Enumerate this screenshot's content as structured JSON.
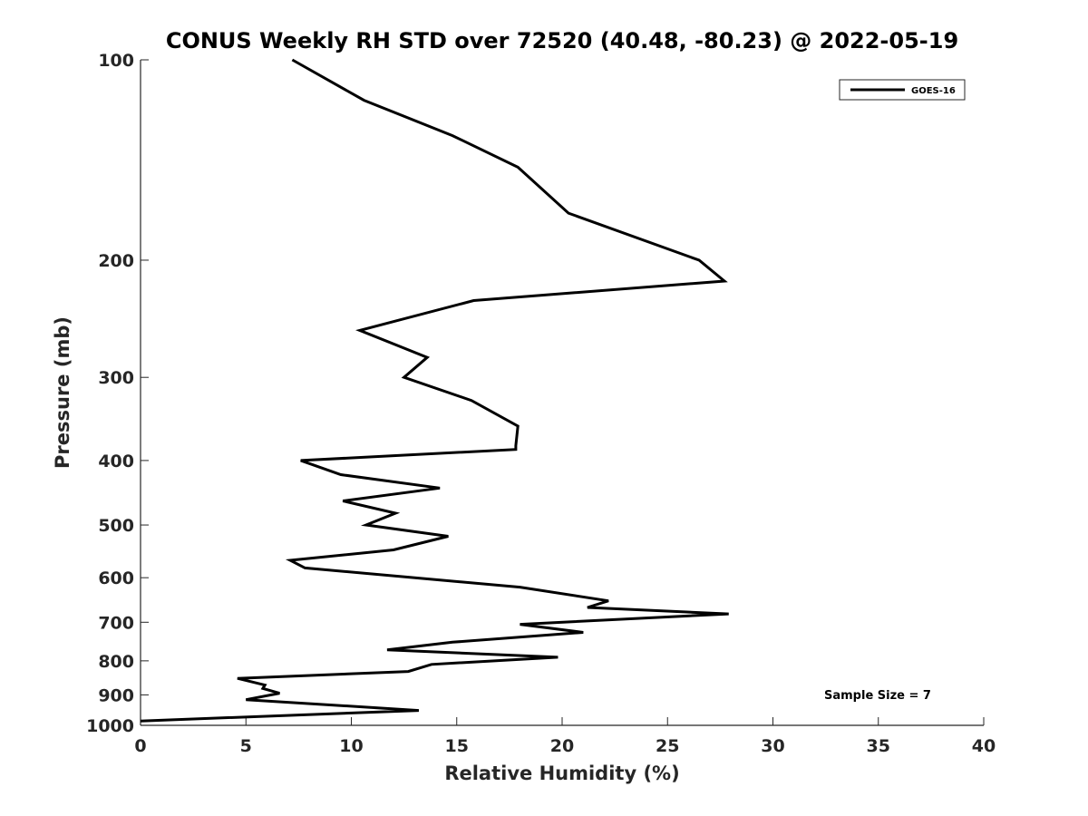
{
  "chart_data": {
    "type": "line",
    "title": "CONUS Weekly RH STD over 72520 (40.48, -80.23) @ 2022-05-19",
    "xlabel": "Relative Humidity (%)",
    "ylabel": "Pressure (mb)",
    "xlim": [
      0,
      40
    ],
    "ylim": [
      1000,
      100
    ],
    "y_scale": "log",
    "x_ticks": [
      0,
      5,
      10,
      15,
      20,
      25,
      30,
      35,
      40
    ],
    "x_tick_labels": [
      "0",
      "5",
      "10",
      "15",
      "20",
      "25",
      "30",
      "35",
      "40"
    ],
    "y_ticks": [
      100,
      200,
      300,
      400,
      500,
      600,
      700,
      800,
      900,
      1000
    ],
    "y_tick_labels": [
      "100",
      "200",
      "300",
      "400",
      "500",
      "600",
      "700",
      "800",
      "900",
      "1000"
    ],
    "grid": false,
    "legend_position": "top-right",
    "series": [
      {
        "name": "GOES-16",
        "color": "#000000",
        "x": [
          7.2,
          10.6,
          14.8,
          17.9,
          20.3,
          26.5,
          27.7,
          15.8,
          10.4,
          13.6,
          12.5,
          15.7,
          17.9,
          17.8,
          17.8,
          7.6,
          9.5,
          14.2,
          9.6,
          12.1,
          10.7,
          14.6,
          12.0,
          7.1,
          7.8,
          18.0,
          22.2,
          21.2,
          27.9,
          18.0,
          21.0,
          14.8,
          11.7,
          19.8,
          13.8,
          12.7,
          4.6,
          5.9,
          5.8,
          6.6,
          5.0,
          13.2,
          0.0
        ],
        "y": [
          100,
          115,
          130,
          145,
          170,
          200,
          215,
          230,
          255,
          280,
          300,
          325,
          355,
          380,
          385,
          400,
          420,
          440,
          460,
          480,
          500,
          520,
          545,
          565,
          580,
          620,
          650,
          665,
          680,
          705,
          725,
          750,
          770,
          790,
          810,
          830,
          850,
          870,
          880,
          895,
          915,
          950,
          985
        ]
      }
    ],
    "annotations": [
      {
        "text": "Sample Size = 7"
      }
    ]
  }
}
